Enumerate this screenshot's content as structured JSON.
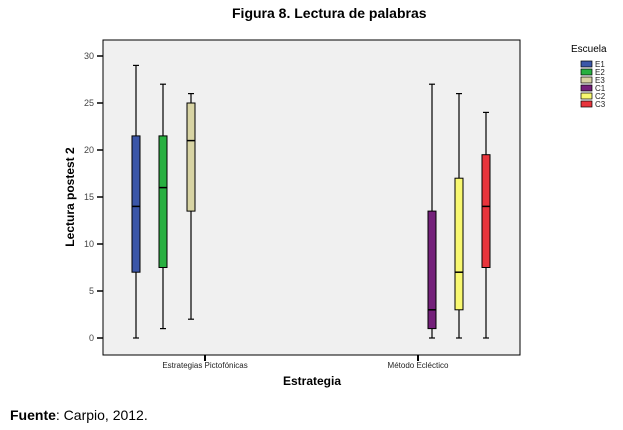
{
  "chart_data": {
    "type": "boxplot",
    "title": "Figura 8. Lectura de palabras",
    "xlabel": "Estrategia",
    "ylabel": "Lectura postest 2",
    "ylim": [
      0,
      30
    ],
    "yticks": [
      0,
      5,
      10,
      15,
      20,
      25,
      30
    ],
    "categories": [
      "Estrategias Pictofónicas",
      "Método Ecléctico"
    ],
    "legend_title": "Escuela",
    "legend_position": "top-right",
    "series": [
      {
        "name": "E1",
        "category": 0,
        "color": "#3b56a8",
        "min": 0,
        "q1": 7,
        "median": 14,
        "q3": 21.5,
        "max": 29
      },
      {
        "name": "E2",
        "category": 0,
        "color": "#28b040",
        "min": 1,
        "q1": 7.5,
        "median": 16,
        "q3": 21.5,
        "max": 27
      },
      {
        "name": "E3",
        "category": 0,
        "color": "#d8d4a4",
        "min": 2,
        "q1": 13.5,
        "median": 21,
        "q3": 25,
        "max": 26
      },
      {
        "name": "C1",
        "category": 1,
        "color": "#74207a",
        "min": 0,
        "q1": 1,
        "median": 3,
        "q3": 13.5,
        "max": 27
      },
      {
        "name": "C2",
        "category": 1,
        "color": "#f8f870",
        "min": 0,
        "q1": 3,
        "median": 7,
        "q3": 17,
        "max": 26
      },
      {
        "name": "C3",
        "category": 1,
        "color": "#e8343c",
        "min": 0,
        "q1": 7.5,
        "median": 14,
        "q3": 19.5,
        "max": 24
      }
    ]
  },
  "source": {
    "label": "Fuente",
    "text": ": Carpio, 2012."
  }
}
